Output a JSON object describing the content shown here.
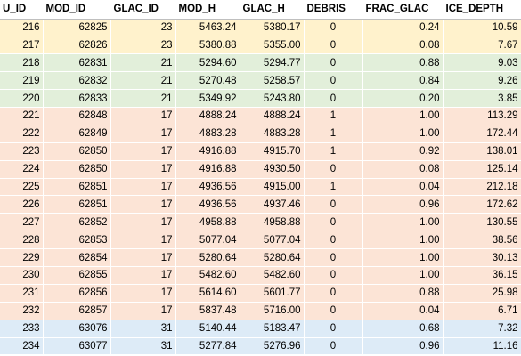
{
  "columns": [
    "U_ID",
    "MOD_ID",
    "GLAC_ID",
    "MOD_H",
    "GLAC_H",
    "DEBRIS",
    "FRAC_GLAC",
    "ICE_DEPTH"
  ],
  "colors": {
    "yellow": "#fff2cc",
    "green": "#e2efda",
    "red": "#fce4d6",
    "blue": "#ddebf7"
  },
  "rows": [
    {
      "group": "yellow",
      "cells": [
        "216",
        "62825",
        "23",
        "5463.24",
        "5380.17",
        "0",
        "0.24",
        "10.59"
      ]
    },
    {
      "group": "yellow",
      "cells": [
        "217",
        "62826",
        "23",
        "5380.88",
        "5355.00",
        "0",
        "0.08",
        "7.67"
      ]
    },
    {
      "group": "green",
      "cells": [
        "218",
        "62831",
        "21",
        "5294.60",
        "5294.77",
        "0",
        "0.88",
        "9.03"
      ]
    },
    {
      "group": "green",
      "cells": [
        "219",
        "62832",
        "21",
        "5270.48",
        "5258.57",
        "0",
        "0.84",
        "9.26"
      ]
    },
    {
      "group": "green",
      "cells": [
        "220",
        "62833",
        "21",
        "5349.92",
        "5243.80",
        "0",
        "0.20",
        "3.85"
      ]
    },
    {
      "group": "red",
      "cells": [
        "221",
        "62848",
        "17",
        "4888.24",
        "4888.24",
        "1",
        "1.00",
        "113.29"
      ]
    },
    {
      "group": "red",
      "cells": [
        "222",
        "62849",
        "17",
        "4883.28",
        "4883.28",
        "1",
        "1.00",
        "172.44"
      ]
    },
    {
      "group": "red",
      "cells": [
        "223",
        "62850",
        "17",
        "4916.88",
        "4915.70",
        "1",
        "0.92",
        "138.01"
      ]
    },
    {
      "group": "red",
      "cells": [
        "224",
        "62850",
        "17",
        "4916.88",
        "4930.50",
        "0",
        "0.08",
        "125.14"
      ]
    },
    {
      "group": "red",
      "cells": [
        "225",
        "62851",
        "17",
        "4936.56",
        "4915.00",
        "1",
        "0.04",
        "212.18"
      ]
    },
    {
      "group": "red",
      "cells": [
        "226",
        "62851",
        "17",
        "4936.56",
        "4937.46",
        "0",
        "0.96",
        "172.62"
      ]
    },
    {
      "group": "red",
      "cells": [
        "227",
        "62852",
        "17",
        "4958.88",
        "4958.88",
        "0",
        "1.00",
        "130.55"
      ]
    },
    {
      "group": "red",
      "cells": [
        "228",
        "62853",
        "17",
        "5077.04",
        "5077.04",
        "0",
        "1.00",
        "38.56"
      ]
    },
    {
      "group": "red",
      "cells": [
        "229",
        "62854",
        "17",
        "5280.64",
        "5280.64",
        "0",
        "1.00",
        "30.13"
      ]
    },
    {
      "group": "red",
      "cells": [
        "230",
        "62855",
        "17",
        "5482.60",
        "5482.60",
        "0",
        "1.00",
        "36.15"
      ]
    },
    {
      "group": "red",
      "cells": [
        "231",
        "62856",
        "17",
        "5614.60",
        "5601.77",
        "0",
        "0.88",
        "25.98"
      ]
    },
    {
      "group": "red",
      "cells": [
        "232",
        "62857",
        "17",
        "5837.48",
        "5716.00",
        "0",
        "0.04",
        "6.71"
      ]
    },
    {
      "group": "blue",
      "cells": [
        "233",
        "63076",
        "31",
        "5140.44",
        "5183.47",
        "0",
        "0.68",
        "7.32"
      ]
    },
    {
      "group": "blue",
      "cells": [
        "234",
        "63077",
        "31",
        "5277.84",
        "5276.96",
        "0",
        "0.96",
        "11.16"
      ]
    }
  ]
}
